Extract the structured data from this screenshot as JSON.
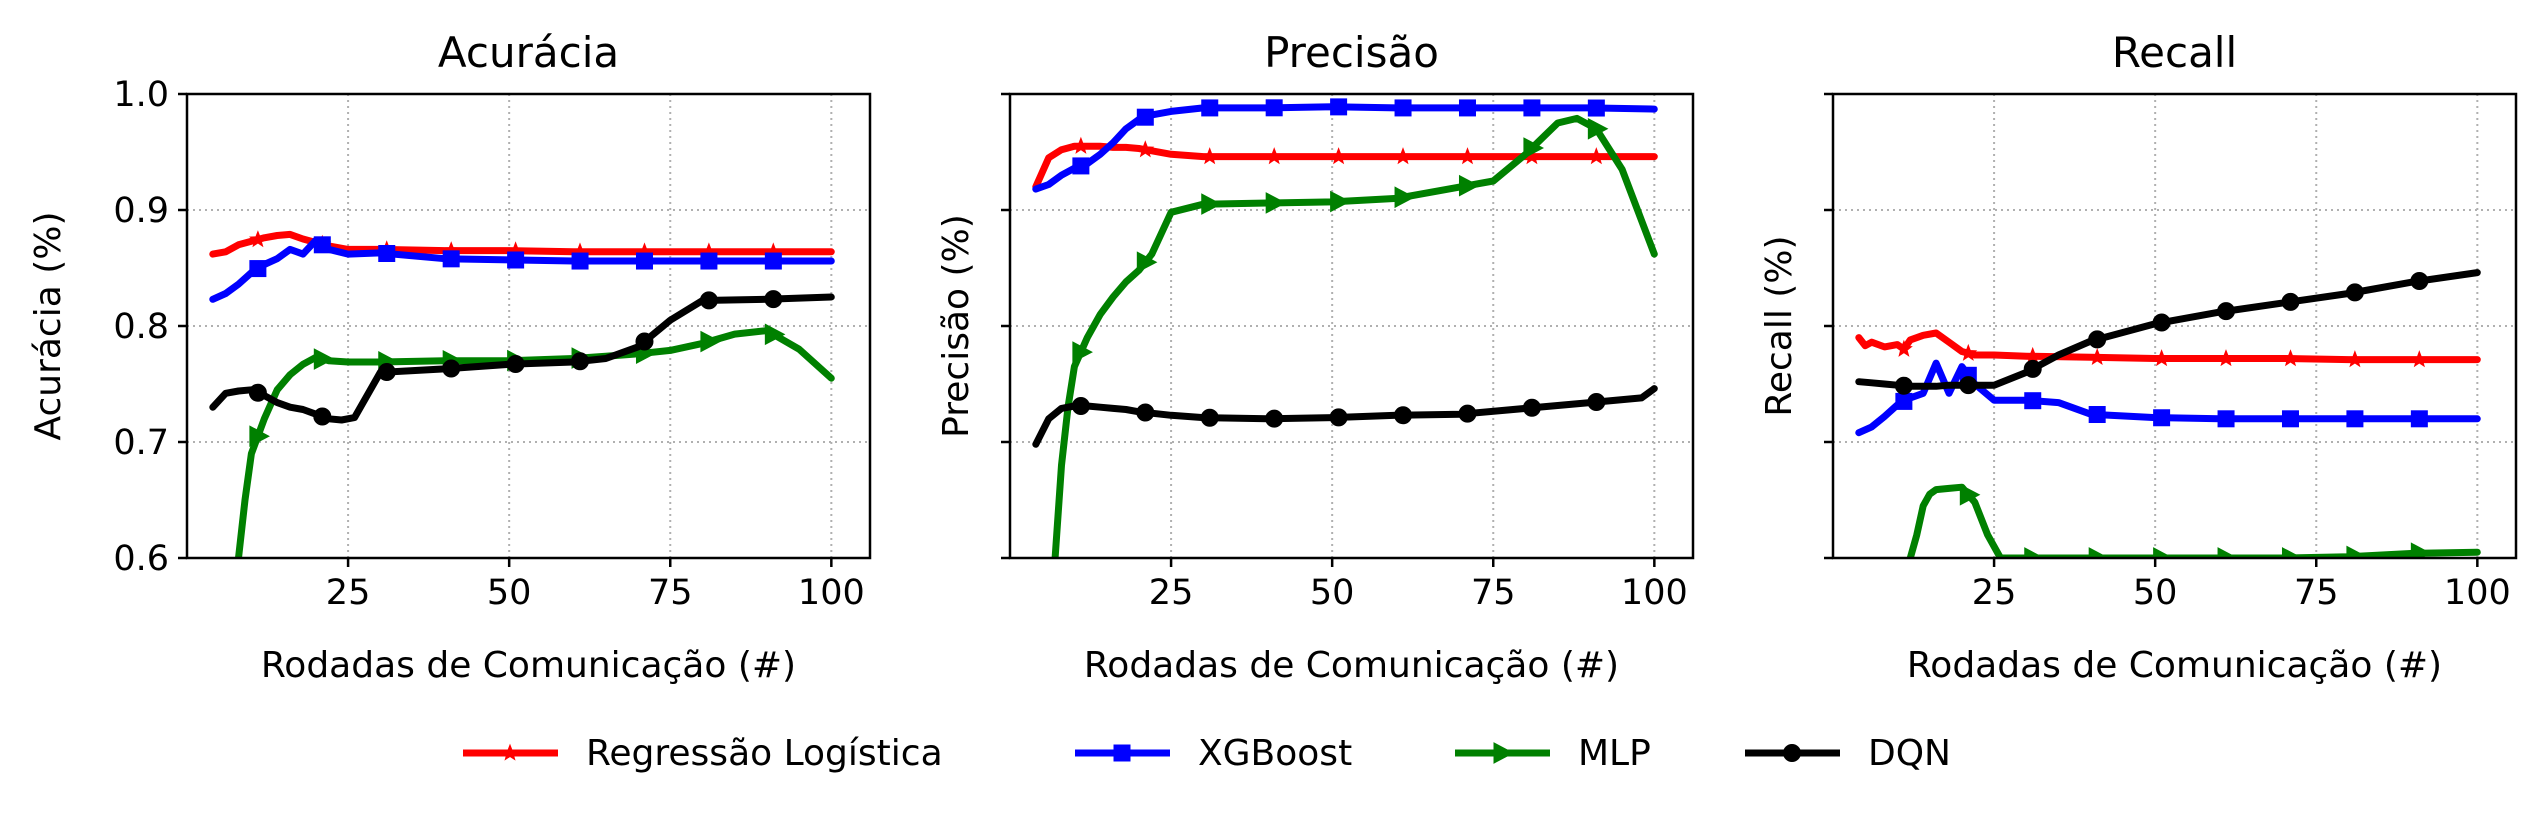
{
  "figure": {
    "legend_placement": "bottom-center",
    "series_styles": [
      {
        "name": "Regressão Logística",
        "color": "#ff0000",
        "marker": "star"
      },
      {
        "name": "XGBoost",
        "color": "#0000ff",
        "marker": "square"
      },
      {
        "name": "MLP",
        "color": "#008000",
        "marker": "triangle-right"
      },
      {
        "name": "DQN",
        "color": "#000000",
        "marker": "circle"
      }
    ]
  },
  "chart_data": [
    {
      "type": "line",
      "title": "Acurácia",
      "xlabel": "Rodadas de Comunicação (#)",
      "ylabel": "Acurácia (%)",
      "xlim": [
        0,
        106
      ],
      "ylim": [
        0.6,
        1.0
      ],
      "xticks": [
        25,
        50,
        75,
        100
      ],
      "xtick_labels": [
        "25",
        "50",
        "75",
        "100"
      ],
      "yticks": [
        0.6,
        0.7,
        0.8,
        0.9,
        1.0
      ],
      "ytick_labels": [
        "0.6",
        "0.7",
        "0.8",
        "0.9",
        "1.0"
      ],
      "grid": true,
      "series": [
        {
          "name": "Regressão Logística",
          "x": [
            4,
            6,
            8,
            10,
            12,
            14,
            16,
            18,
            20,
            22,
            25,
            30,
            40,
            50,
            60,
            70,
            80,
            90,
            100
          ],
          "y": [
            0.862,
            0.864,
            0.87,
            0.873,
            0.876,
            0.878,
            0.879,
            0.875,
            0.872,
            0.869,
            0.866,
            0.866,
            0.865,
            0.865,
            0.864,
            0.864,
            0.864,
            0.864,
            0.864
          ]
        },
        {
          "name": "XGBoost",
          "x": [
            4,
            6,
            8,
            10,
            12,
            14,
            16,
            18,
            20,
            22,
            25,
            30,
            40,
            50,
            60,
            70,
            80,
            90,
            100
          ],
          "y": [
            0.823,
            0.828,
            0.836,
            0.846,
            0.853,
            0.858,
            0.866,
            0.862,
            0.874,
            0.866,
            0.862,
            0.863,
            0.858,
            0.857,
            0.856,
            0.856,
            0.856,
            0.856,
            0.856
          ]
        },
        {
          "name": "MLP",
          "x": [
            8,
            9,
            10,
            12,
            14,
            16,
            18,
            20,
            22,
            25,
            30,
            40,
            50,
            60,
            65,
            70,
            75,
            80,
            85,
            90,
            95,
            100
          ],
          "y": [
            0.6,
            0.65,
            0.69,
            0.72,
            0.745,
            0.758,
            0.767,
            0.773,
            0.77,
            0.769,
            0.769,
            0.77,
            0.77,
            0.772,
            0.774,
            0.776,
            0.779,
            0.785,
            0.793,
            0.796,
            0.78,
            0.755
          ]
        },
        {
          "name": "DQN",
          "x": [
            4,
            6,
            8,
            10,
            12,
            14,
            16,
            18,
            20,
            22,
            24,
            26,
            30,
            40,
            50,
            60,
            65,
            70,
            75,
            80,
            90,
            100
          ],
          "y": [
            0.73,
            0.742,
            0.744,
            0.745,
            0.74,
            0.734,
            0.73,
            0.728,
            0.724,
            0.72,
            0.719,
            0.721,
            0.76,
            0.763,
            0.767,
            0.769,
            0.772,
            0.782,
            0.805,
            0.822,
            0.823,
            0.825
          ]
        }
      ]
    },
    {
      "type": "line",
      "title": "Precisão",
      "xlabel": "Rodadas de Comunicação (#)",
      "ylabel": "Precisão (%)",
      "xlim": [
        0,
        106
      ],
      "ylim": [
        0.6,
        1.0
      ],
      "xticks": [
        25,
        50,
        75,
        100
      ],
      "xtick_labels": [
        "25",
        "50",
        "75",
        "100"
      ],
      "yticks": [
        0.6,
        0.7,
        0.8,
        0.9,
        1.0
      ],
      "ytick_labels": [
        "",
        "",
        "",
        "",
        ""
      ],
      "grid": true,
      "series": [
        {
          "name": "Regressão Logística",
          "x": [
            4,
            6,
            8,
            10,
            12,
            14,
            16,
            18,
            20,
            22,
            25,
            30,
            40,
            50,
            60,
            70,
            80,
            90,
            100
          ],
          "y": [
            0.92,
            0.945,
            0.952,
            0.955,
            0.955,
            0.955,
            0.954,
            0.954,
            0.953,
            0.951,
            0.948,
            0.946,
            0.946,
            0.946,
            0.946,
            0.946,
            0.946,
            0.946,
            0.946
          ]
        },
        {
          "name": "XGBoost",
          "x": [
            4,
            6,
            8,
            10,
            12,
            14,
            16,
            18,
            20,
            22,
            25,
            30,
            40,
            50,
            60,
            70,
            80,
            90,
            100
          ],
          "y": [
            0.918,
            0.922,
            0.93,
            0.936,
            0.94,
            0.948,
            0.958,
            0.97,
            0.978,
            0.982,
            0.985,
            0.988,
            0.988,
            0.989,
            0.988,
            0.988,
            0.988,
            0.988,
            0.987
          ]
        },
        {
          "name": "MLP",
          "x": [
            7,
            8,
            9,
            10,
            12,
            14,
            16,
            18,
            20,
            22,
            25,
            30,
            40,
            50,
            60,
            70,
            75,
            80,
            85,
            88,
            91,
            95,
            100
          ],
          "y": [
            0.6,
            0.68,
            0.73,
            0.765,
            0.79,
            0.81,
            0.825,
            0.838,
            0.848,
            0.862,
            0.898,
            0.905,
            0.906,
            0.907,
            0.91,
            0.92,
            0.925,
            0.948,
            0.975,
            0.979,
            0.97,
            0.935,
            0.862
          ]
        },
        {
          "name": "DQN",
          "x": [
            4,
            6,
            8,
            10,
            12,
            14,
            16,
            18,
            20,
            25,
            30,
            40,
            50,
            60,
            70,
            80,
            90,
            98,
            100
          ],
          "y": [
            0.698,
            0.72,
            0.729,
            0.731,
            0.731,
            0.73,
            0.729,
            0.728,
            0.726,
            0.723,
            0.721,
            0.72,
            0.721,
            0.723,
            0.724,
            0.729,
            0.734,
            0.738,
            0.746
          ]
        }
      ]
    },
    {
      "type": "line",
      "title": "Recall",
      "xlabel": "Rodadas de Comunicação (#)",
      "ylabel": "Recall (%)",
      "xlim": [
        0,
        106
      ],
      "ylim": [
        0.6,
        1.0
      ],
      "xticks": [
        25,
        50,
        75,
        100
      ],
      "xtick_labels": [
        "25",
        "50",
        "75",
        "100"
      ],
      "yticks": [
        0.6,
        0.7,
        0.8,
        0.9,
        1.0
      ],
      "ytick_labels": [
        "",
        "",
        "",
        "",
        ""
      ],
      "grid": true,
      "series": [
        {
          "name": "Regressão Logística",
          "x": [
            4,
            5,
            6,
            8,
            10,
            11,
            12,
            14,
            16,
            18,
            20,
            22,
            25,
            30,
            40,
            50,
            60,
            70,
            80,
            90,
            100
          ],
          "y": [
            0.79,
            0.783,
            0.786,
            0.782,
            0.784,
            0.78,
            0.788,
            0.792,
            0.794,
            0.786,
            0.778,
            0.775,
            0.775,
            0.774,
            0.773,
            0.772,
            0.772,
            0.772,
            0.771,
            0.771,
            0.771
          ]
        },
        {
          "name": "XGBoost",
          "x": [
            4,
            6,
            8,
            10,
            12,
            14,
            16,
            18,
            20,
            22,
            25,
            30,
            35,
            40,
            50,
            60,
            70,
            80,
            90,
            100
          ],
          "y": [
            0.708,
            0.713,
            0.722,
            0.732,
            0.738,
            0.742,
            0.768,
            0.742,
            0.765,
            0.75,
            0.736,
            0.736,
            0.734,
            0.724,
            0.721,
            0.72,
            0.72,
            0.72,
            0.72,
            0.72
          ]
        },
        {
          "name": "MLP",
          "x": [
            12,
            13,
            14,
            15,
            16,
            18,
            20,
            22,
            24,
            26,
            30,
            40,
            50,
            60,
            70,
            80,
            90,
            100
          ],
          "y": [
            0.6,
            0.62,
            0.645,
            0.655,
            0.659,
            0.66,
            0.661,
            0.648,
            0.62,
            0.6,
            0.6,
            0.6,
            0.6,
            0.6,
            0.6,
            0.601,
            0.604,
            0.605
          ]
        },
        {
          "name": "DQN",
          "x": [
            4,
            6,
            8,
            10,
            12,
            14,
            16,
            18,
            20,
            22,
            25,
            30,
            35,
            40,
            50,
            60,
            70,
            80,
            90,
            100
          ],
          "y": [
            0.752,
            0.751,
            0.75,
            0.749,
            0.748,
            0.748,
            0.748,
            0.749,
            0.749,
            0.749,
            0.749,
            0.76,
            0.775,
            0.787,
            0.802,
            0.812,
            0.82,
            0.828,
            0.838,
            0.846
          ]
        }
      ]
    }
  ],
  "legend": {
    "items": [
      {
        "label": "Regressão Logística"
      },
      {
        "label": "XGBoost"
      },
      {
        "label": "MLP"
      },
      {
        "label": "DQN"
      }
    ]
  }
}
